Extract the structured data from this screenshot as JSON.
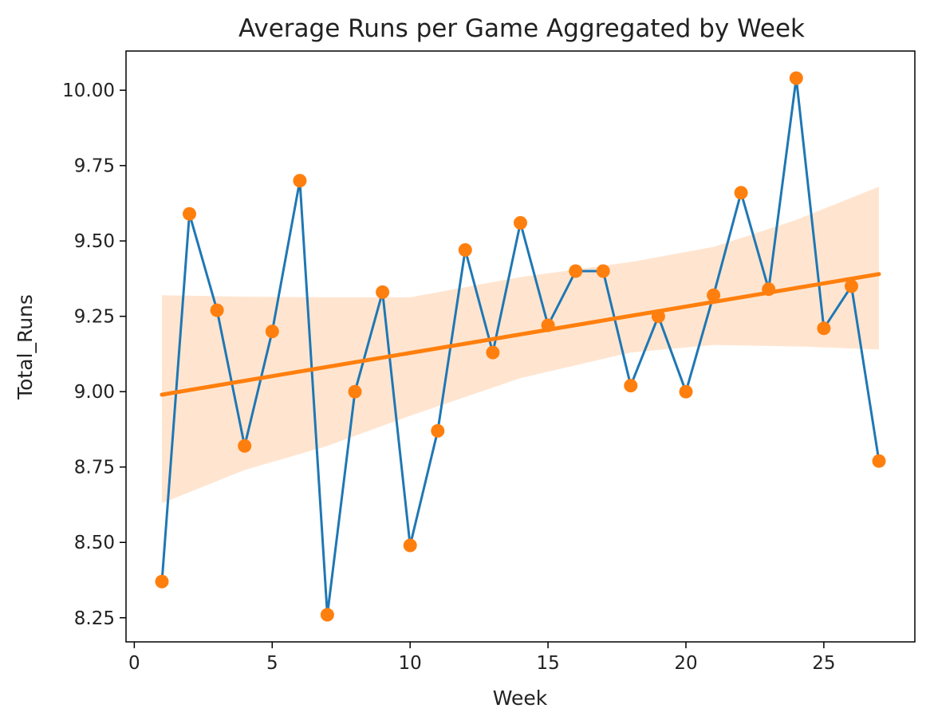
{
  "chart_data": {
    "type": "line",
    "title": "Average Runs per Game Aggregated by Week",
    "xlabel": "Week",
    "ylabel": "Total_Runs",
    "xlim": [
      -0.3,
      28.3
    ],
    "ylim": [
      8.17,
      10.13
    ],
    "xticks": [
      0,
      5,
      10,
      15,
      20,
      25
    ],
    "yticks": [
      8.25,
      8.5,
      8.75,
      9.0,
      9.25,
      9.5,
      9.75,
      10.0
    ],
    "ytick_labels": [
      "8.25",
      "8.50",
      "8.75",
      "9.00",
      "9.25",
      "9.50",
      "9.75",
      "10.00"
    ],
    "grid": false,
    "colors": {
      "line": "#1f77b4",
      "points": "#ff7f0e",
      "regression": "#ff7f0e",
      "band": "#ffe5d0"
    },
    "series": [
      {
        "type": "line",
        "x": [
          1,
          2,
          3,
          4,
          5,
          6,
          7,
          8,
          9,
          10,
          11,
          12,
          13,
          14,
          15,
          16,
          17,
          18,
          19,
          20,
          21,
          22,
          23,
          24,
          25,
          26,
          27
        ],
        "values": [
          8.37,
          9.59,
          9.27,
          8.82,
          9.2,
          9.7,
          8.26,
          9.0,
          9.33,
          8.49,
          8.87,
          9.47,
          9.13,
          9.56,
          9.22,
          9.4,
          9.4,
          9.02,
          9.25,
          9.0,
          9.32,
          9.66,
          9.34,
          10.04,
          9.21,
          9.35,
          8.77
        ]
      }
    ],
    "regression": {
      "x_range": [
        1,
        27
      ],
      "start": 8.99,
      "end": 9.39,
      "band": {
        "x": [
          1,
          4,
          7,
          10,
          14,
          18,
          21,
          24,
          27
        ],
        "upper": [
          9.32,
          9.315,
          9.313,
          9.313,
          9.38,
          9.43,
          9.48,
          9.57,
          9.68
        ],
        "lower": [
          8.63,
          8.74,
          8.82,
          8.92,
          9.045,
          9.13,
          9.155,
          9.15,
          9.14
        ]
      }
    }
  }
}
